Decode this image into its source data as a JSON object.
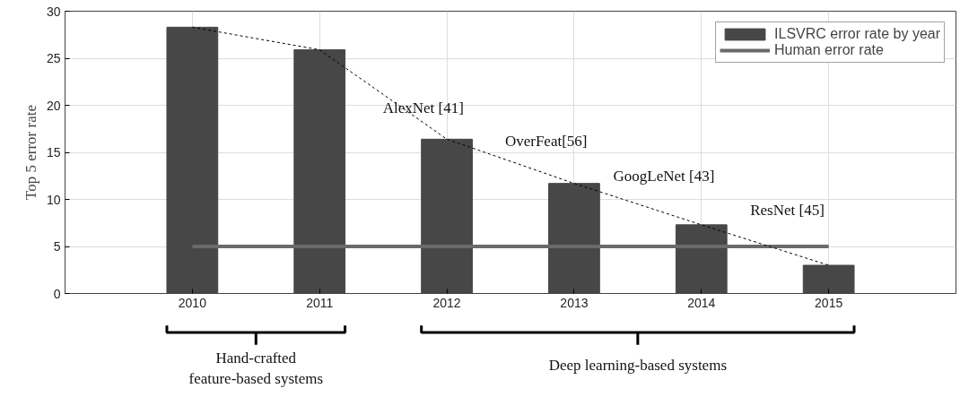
{
  "chart_data": {
    "type": "bar",
    "ylabel": "Top 5 error rate",
    "x": [
      2010,
      2011,
      2012,
      2013,
      2014,
      2015
    ],
    "series": [
      {
        "name": "ILSVRC error rate by year",
        "color": "#474747",
        "values": [
          28.3,
          25.9,
          16.4,
          11.7,
          7.3,
          3.0
        ]
      },
      {
        "type": "line",
        "name": "Human error rate",
        "color": "#6a6a6a",
        "values": [
          5,
          5,
          5,
          5,
          5,
          5
        ]
      },
      {
        "type": "line",
        "color": "#000000",
        "line_style": "dotted",
        "values": [
          28.3,
          25.9,
          16.4,
          11.7,
          7.3,
          3.0
        ]
      }
    ],
    "xlim": [
      2009,
      2016
    ],
    "xticks": [
      2010,
      2011,
      2012,
      2013,
      2014,
      2015
    ],
    "ylim": [
      0,
      30
    ],
    "yticks": [
      0,
      5,
      10,
      15,
      20,
      25,
      30
    ],
    "grid": true,
    "legend": "top right",
    "annotations": [
      {
        "text": "AlexNet  [41]",
        "x": 2012,
        "y": 16.4
      },
      {
        "text": "OverFeat[56]",
        "x": 2013,
        "y": 11.7
      },
      {
        "text": "GoogLeNet  [43]",
        "x": 2014,
        "y": 7.3
      },
      "ResNet  [45]",
      "Hand-crafted\nfeature-based systems",
      "Deep learning-based systems"
    ]
  }
}
